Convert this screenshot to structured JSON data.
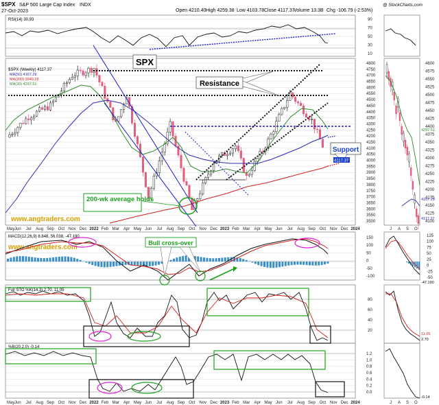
{
  "header": {
    "symbol": "$SPX",
    "name": "S&P 500 Large Cap Index",
    "exchange": "INDX",
    "date": "27-Oct-2023",
    "open": "Open 4210.40",
    "high": "High 4259.38",
    "low": "Low 4103.78",
    "close": "Close 4117.37",
    "volume": "Volume 13.3B",
    "change": "Chg -106.79 (-2.53%)",
    "watermark": "@ StockCharts.com"
  },
  "labels": {
    "spx": "SPX",
    "resistance": "Resistance",
    "support": "Support",
    "ma200": "200-wk average holds",
    "bull_cross": "Bull cross-over",
    "website1": "www.angtraders.com",
    "website2": "www.angtraders.com"
  },
  "legends": {
    "rsi": "RSI(14) 30.93",
    "price": "$SPX (Weekly) 4117.37",
    "ma50": "MA(50) 4167.29",
    "ma200": "MA(200) 3940.28",
    "ma20": "MA(20) 4297.51",
    "macd": "MACD(12,26,9) 8.848, 56.038, -47.190",
    "stoch": "Full STO %K(14,3) 2.70, 11.05",
    "pctb": "%B(20,2.0) -0.14"
  },
  "price_axis_labels": [
    "4800",
    "4750",
    "4700",
    "4650",
    "4600",
    "4550",
    "4500",
    "4450",
    "4400",
    "4350",
    "4300",
    "4250",
    "4200",
    "4150",
    "4100",
    "4050",
    "4000",
    "3950",
    "3900",
    "3850",
    "3800",
    "3750",
    "3700",
    "3650",
    "3600",
    "3550",
    "3500"
  ],
  "price_last_tag": "4117.37",
  "rsi_axis_labels": [
    "90",
    "70",
    "50",
    "30",
    "10"
  ],
  "macd_axis_labels": [
    "150",
    "100",
    "50",
    "0",
    "-50",
    "-100"
  ],
  "stoch_axis_labels": [
    "80",
    "60",
    "40",
    "20"
  ],
  "pctb_axis_labels": [
    "1.2",
    "1.0",
    "0.8",
    "0.6",
    "0.4",
    "0.2",
    "0.0"
  ],
  "x_labels": [
    "May",
    "Jun",
    "Jul",
    "Aug",
    "Sep",
    "Oct",
    "Nov",
    "Dec",
    "2022",
    "Feb",
    "Mar",
    "Apr",
    "May",
    "Jun",
    "Jul",
    "Aug",
    "Sep",
    "Oct",
    "Nov",
    "Dec",
    "2023",
    "Feb",
    "Mar",
    "Apr",
    "May",
    "Jun",
    "Jul",
    "Aug",
    "Sep",
    "Oct",
    "Nov",
    "Dec",
    "2024"
  ],
  "right_price_axis_labels": [
    "4600",
    "4575",
    "4550",
    "4525",
    "4500",
    "4475",
    "4450",
    "4425",
    "4400",
    "4375",
    "4350",
    "4325",
    "4300",
    "4275",
    "4250",
    "4225",
    "4200",
    "4175",
    "4150",
    "4125",
    "4100"
  ],
  "right_tags": {
    "ma20": "4297.51",
    "ma50": "4167.29",
    "close": "4117.37",
    "macd": "-47.190",
    "stoch1": "11.05",
    "stoch2": "2.70",
    "pctb": "-0.14"
  },
  "right_x_labels": [
    "J",
    "A",
    "S",
    "O"
  ],
  "right_macd_axis_labels": [
    "125",
    "100",
    "75",
    "50",
    "25",
    "0",
    "-25",
    "-50"
  ],
  "colors": {
    "up_candle": "#1a1a1a",
    "down_candle": "#e0607e",
    "ma20": "#2a8a2a",
    "ma50": "#2b2bb0",
    "ma200": "#d02020",
    "annotation_green": "#1aa01a",
    "website": "#d4a000",
    "support_text": "#1a3fd0",
    "box_green": "#1aa01a",
    "ellipse_magenta": "#e020d0",
    "dotted_blue": "#1a1ad0"
  },
  "chart_data": [
    {
      "type": "candlestick",
      "title": "$SPX (Weekly)",
      "x_range": [
        "2021-05",
        "2024-01"
      ],
      "y_range": [
        3500,
        4800
      ],
      "close_series_approx": [
        {
          "x": "2021-05",
          "y": 4190
        },
        {
          "x": "2021-07",
          "y": 4360
        },
        {
          "x": "2021-09",
          "y": 4450
        },
        {
          "x": "2021-11",
          "y": 4700
        },
        {
          "x": "2022-01",
          "y": 4760
        },
        {
          "x": "2022-03",
          "y": 4300
        },
        {
          "x": "2022-04",
          "y": 4540
        },
        {
          "x": "2022-06",
          "y": 3700
        },
        {
          "x": "2022-08",
          "y": 4290
        },
        {
          "x": "2022-10",
          "y": 3590
        },
        {
          "x": "2022-12",
          "y": 3990
        },
        {
          "x": "2023-02",
          "y": 4120
        },
        {
          "x": "2023-03",
          "y": 3860
        },
        {
          "x": "2023-05",
          "y": 4160
        },
        {
          "x": "2023-07",
          "y": 4550
        },
        {
          "x": "2023-09",
          "y": 4330
        },
        {
          "x": "2023-10",
          "y": 4117
        }
      ],
      "series": [
        {
          "name": "MA(50)",
          "last": 4167.29
        },
        {
          "name": "MA(200)",
          "last": 3940.28
        },
        {
          "name": "MA(20)",
          "last": 4297.51
        }
      ]
    },
    {
      "type": "line",
      "title": "RSI(14)",
      "y_range": [
        10,
        90
      ],
      "last": 30.93
    },
    {
      "type": "line",
      "title": "MACD(12,26,9)",
      "y_range": [
        -100,
        150
      ],
      "values": [
        8.848,
        56.038,
        -47.19
      ]
    },
    {
      "type": "line",
      "title": "Full STO %K(14,3)",
      "y_range": [
        0,
        100
      ],
      "values": [
        2.7,
        11.05
      ]
    },
    {
      "type": "line",
      "title": "%B(20,2.0)",
      "y_range": [
        -0.2,
        1.3
      ],
      "last": -0.14
    }
  ]
}
